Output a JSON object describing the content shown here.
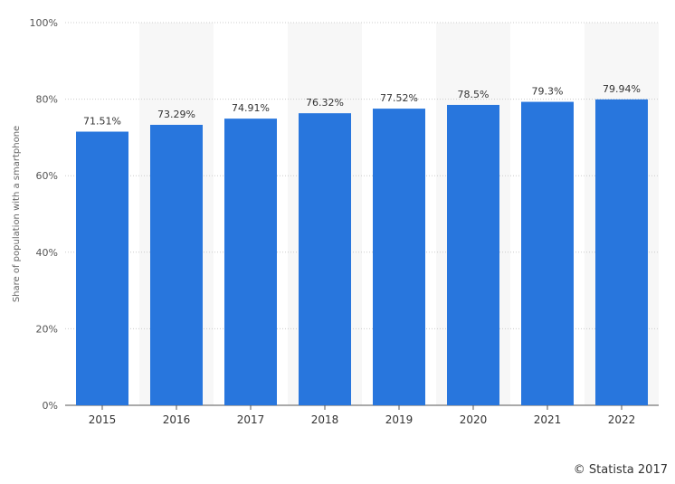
{
  "chart_data": {
    "type": "bar",
    "categories": [
      "2015",
      "2016",
      "2017",
      "2018",
      "2019",
      "2020",
      "2021",
      "2022"
    ],
    "values": [
      71.51,
      73.29,
      74.91,
      76.32,
      77.52,
      78.5,
      79.3,
      79.94
    ],
    "value_labels": [
      "71.51%",
      "73.29%",
      "74.91%",
      "76.32%",
      "77.52%",
      "78.5%",
      "79.3%",
      "79.94%"
    ],
    "ylabel": "Share of population with a smartphone",
    "ylim": [
      0,
      100
    ],
    "yticks": [
      0,
      20,
      40,
      60,
      80,
      100
    ],
    "ytick_labels": [
      "0%",
      "20%",
      "40%",
      "60%",
      "80%",
      "100%"
    ],
    "grid": true,
    "bar_color": "#2876dd",
    "band_color": "#f7f7f7"
  },
  "credit": "© Statista 2017"
}
